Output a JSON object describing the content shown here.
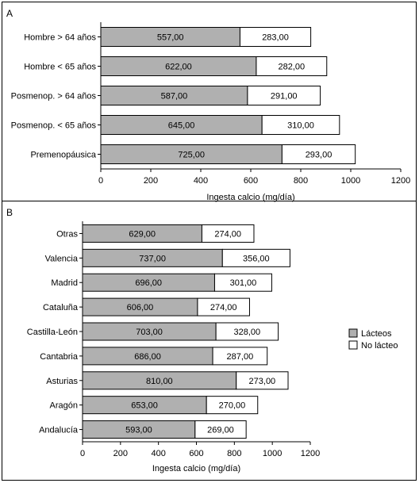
{
  "panels": [
    {
      "label": "A"
    },
    {
      "label": "B"
    }
  ],
  "chart_data": [
    {
      "type": "bar",
      "orientation": "horizontal",
      "stacked": true,
      "categories": [
        "Hombre > 64 años",
        "Hombre < 65 años",
        "Posmenop. > 64 años",
        "Posmenop. < 65 años",
        "Premenopáusica"
      ],
      "series": [
        {
          "values": [
            557,
            622,
            587,
            645,
            725
          ],
          "labels": [
            "557,00",
            "622,00",
            "587,00",
            "645,00",
            "725,00"
          ],
          "color": "#b0b0b0"
        },
        {
          "values": [
            283,
            282,
            291,
            310,
            293
          ],
          "labels": [
            "283,00",
            "282,00",
            "291,00",
            "310,00",
            "293,00"
          ],
          "color": "#ffffff"
        }
      ],
      "xlabel": "Ingesta calcio (mg/día)",
      "xlim": [
        0,
        1200
      ],
      "xticks": [
        "0",
        "200",
        "400",
        "600",
        "800",
        "1000",
        "1200"
      ],
      "grid": false
    },
    {
      "type": "bar",
      "orientation": "horizontal",
      "stacked": true,
      "categories": [
        "Otras",
        "Valencia",
        "Madrid",
        "Cataluña",
        "Castilla-León",
        "Cantabria",
        "Asturias",
        "Aragón",
        "Andalucía"
      ],
      "series": [
        {
          "name": "Lácteos",
          "values": [
            629,
            737,
            696,
            606,
            703,
            686,
            810,
            653,
            593
          ],
          "labels": [
            "629,00",
            "737,00",
            "696,00",
            "606,00",
            "703,00",
            "686,00",
            "810,00",
            "653,00",
            "593,00"
          ],
          "color": "#b0b0b0"
        },
        {
          "name": "No lácteo",
          "values": [
            274,
            356,
            301,
            274,
            328,
            287,
            273,
            270,
            269
          ],
          "labels": [
            "274,00",
            "356,00",
            "301,00",
            "274,00",
            "328,00",
            "287,00",
            "273,00",
            "270,00",
            "269,00"
          ],
          "color": "#ffffff"
        }
      ],
      "xlabel": "Ingesta calcio (mg/día)",
      "xlim": [
        0,
        1200
      ],
      "xticks": [
        "0",
        "200",
        "400",
        "600",
        "800",
        "1000",
        "1200"
      ],
      "legend": "right",
      "grid": false
    }
  ]
}
